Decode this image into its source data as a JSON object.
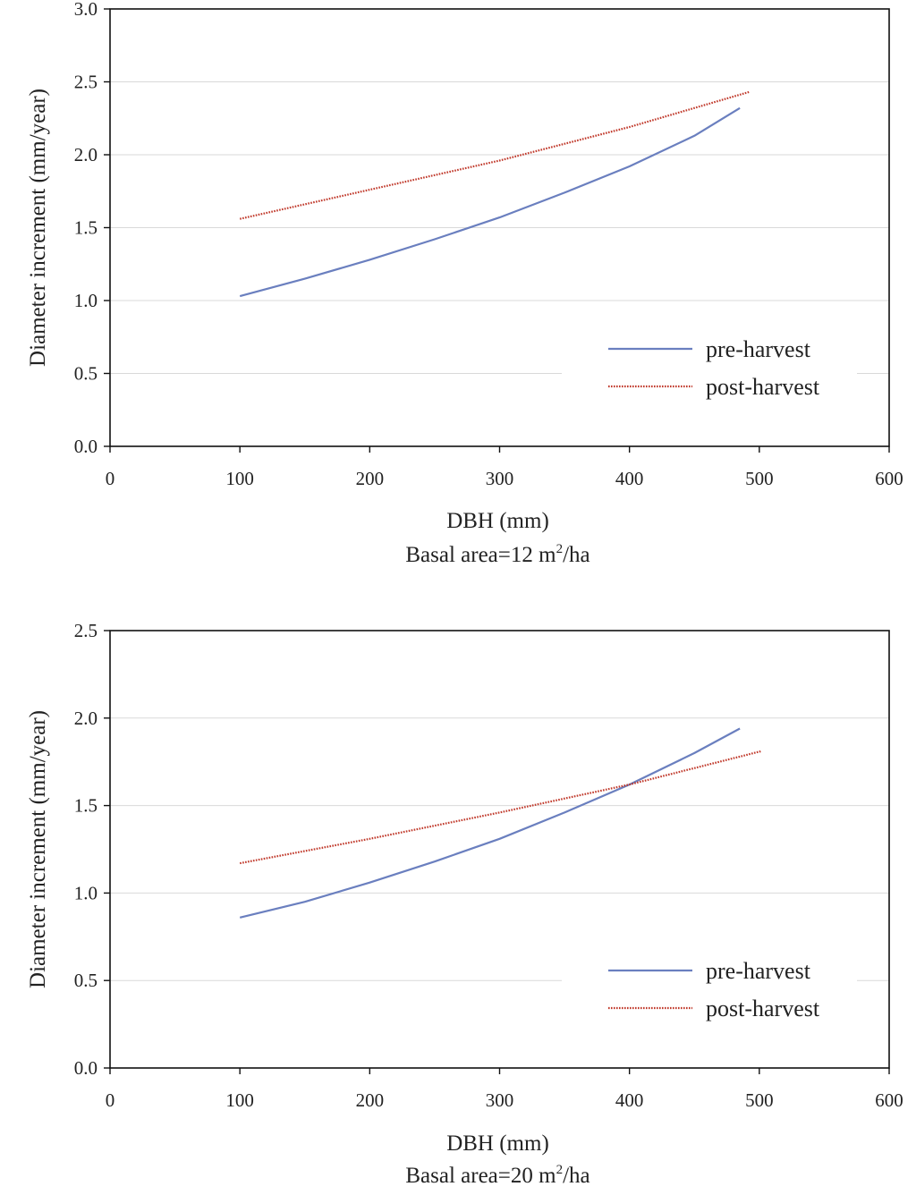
{
  "chart_data": [
    {
      "type": "line",
      "xlabel": "DBH (mm)",
      "ylabel": "Diameter increment (mm/year)",
      "caption": {
        "prefix": "Basal area=12 m",
        "sup": "2",
        "suffix": "/ha"
      },
      "xlim": [
        0,
        600
      ],
      "ylim": [
        0,
        3.0
      ],
      "xticks": [
        0,
        100,
        200,
        300,
        400,
        500,
        600
      ],
      "yticks": [
        "0.0",
        "0.5",
        "1.0",
        "1.5",
        "2.0",
        "2.5",
        "3.0"
      ],
      "grid": "horizontal",
      "legend": {
        "position": "lower-right"
      },
      "series": [
        {
          "name": "pre-harvest",
          "color": "#6a7fbf",
          "style": "solid",
          "x": [
            100,
            150,
            200,
            250,
            300,
            350,
            400,
            450,
            485
          ],
          "y": [
            1.03,
            1.15,
            1.28,
            1.42,
            1.57,
            1.74,
            1.92,
            2.13,
            2.32
          ]
        },
        {
          "name": "post-harvest",
          "color": "#c0392b",
          "style": "dotted",
          "x": [
            100,
            200,
            300,
            400,
            492
          ],
          "y": [
            1.56,
            1.76,
            1.96,
            2.19,
            2.43
          ]
        }
      ]
    },
    {
      "type": "line",
      "xlabel": "DBH (mm)",
      "ylabel": "Diameter increment (mm/year)",
      "caption": {
        "prefix": "Basal area=20 m",
        "sup": "2",
        "suffix": "/ha"
      },
      "xlim": [
        0,
        600
      ],
      "ylim": [
        0,
        2.5
      ],
      "xticks": [
        0,
        100,
        200,
        300,
        400,
        500,
        600
      ],
      "yticks": [
        "0.0",
        "0.5",
        "1.0",
        "1.5",
        "2.0",
        "2.5"
      ],
      "grid": "horizontal",
      "legend": {
        "position": "lower-right"
      },
      "series": [
        {
          "name": "pre-harvest",
          "color": "#6a7fbf",
          "style": "solid",
          "x": [
            100,
            150,
            200,
            250,
            300,
            350,
            400,
            450,
            485
          ],
          "y": [
            0.86,
            0.95,
            1.06,
            1.18,
            1.31,
            1.46,
            1.62,
            1.8,
            1.94
          ]
        },
        {
          "name": "post-harvest",
          "color": "#c0392b",
          "style": "dotted",
          "x": [
            100,
            200,
            300,
            400,
            501
          ],
          "y": [
            1.17,
            1.31,
            1.46,
            1.62,
            1.81
          ]
        }
      ]
    }
  ]
}
